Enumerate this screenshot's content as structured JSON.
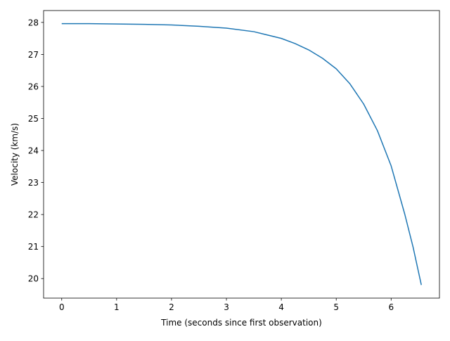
{
  "chart_data": {
    "type": "line",
    "xlabel": "Time (seconds since first observation)",
    "ylabel": "Velocity (km/s)",
    "xlim": [
      -0.33,
      6.88
    ],
    "ylim": [
      19.39,
      28.37
    ],
    "xticks": [
      0,
      1,
      2,
      3,
      4,
      5,
      6
    ],
    "yticks": [
      20,
      21,
      22,
      23,
      24,
      25,
      26,
      27,
      28
    ],
    "grid": false,
    "series": [
      {
        "color": "#1f77b4",
        "x": [
          0,
          0.5,
          1.0,
          1.5,
          2.0,
          2.5,
          3.0,
          3.5,
          4.0,
          4.25,
          4.5,
          4.75,
          5.0,
          5.25,
          5.5,
          5.75,
          6.0,
          6.25,
          6.4,
          6.55
        ],
        "y": [
          27.96,
          27.96,
          27.95,
          27.94,
          27.92,
          27.88,
          27.82,
          27.71,
          27.5,
          27.34,
          27.14,
          26.88,
          26.55,
          26.08,
          25.45,
          24.62,
          23.52,
          22.0,
          20.98,
          19.8
        ]
      }
    ]
  }
}
